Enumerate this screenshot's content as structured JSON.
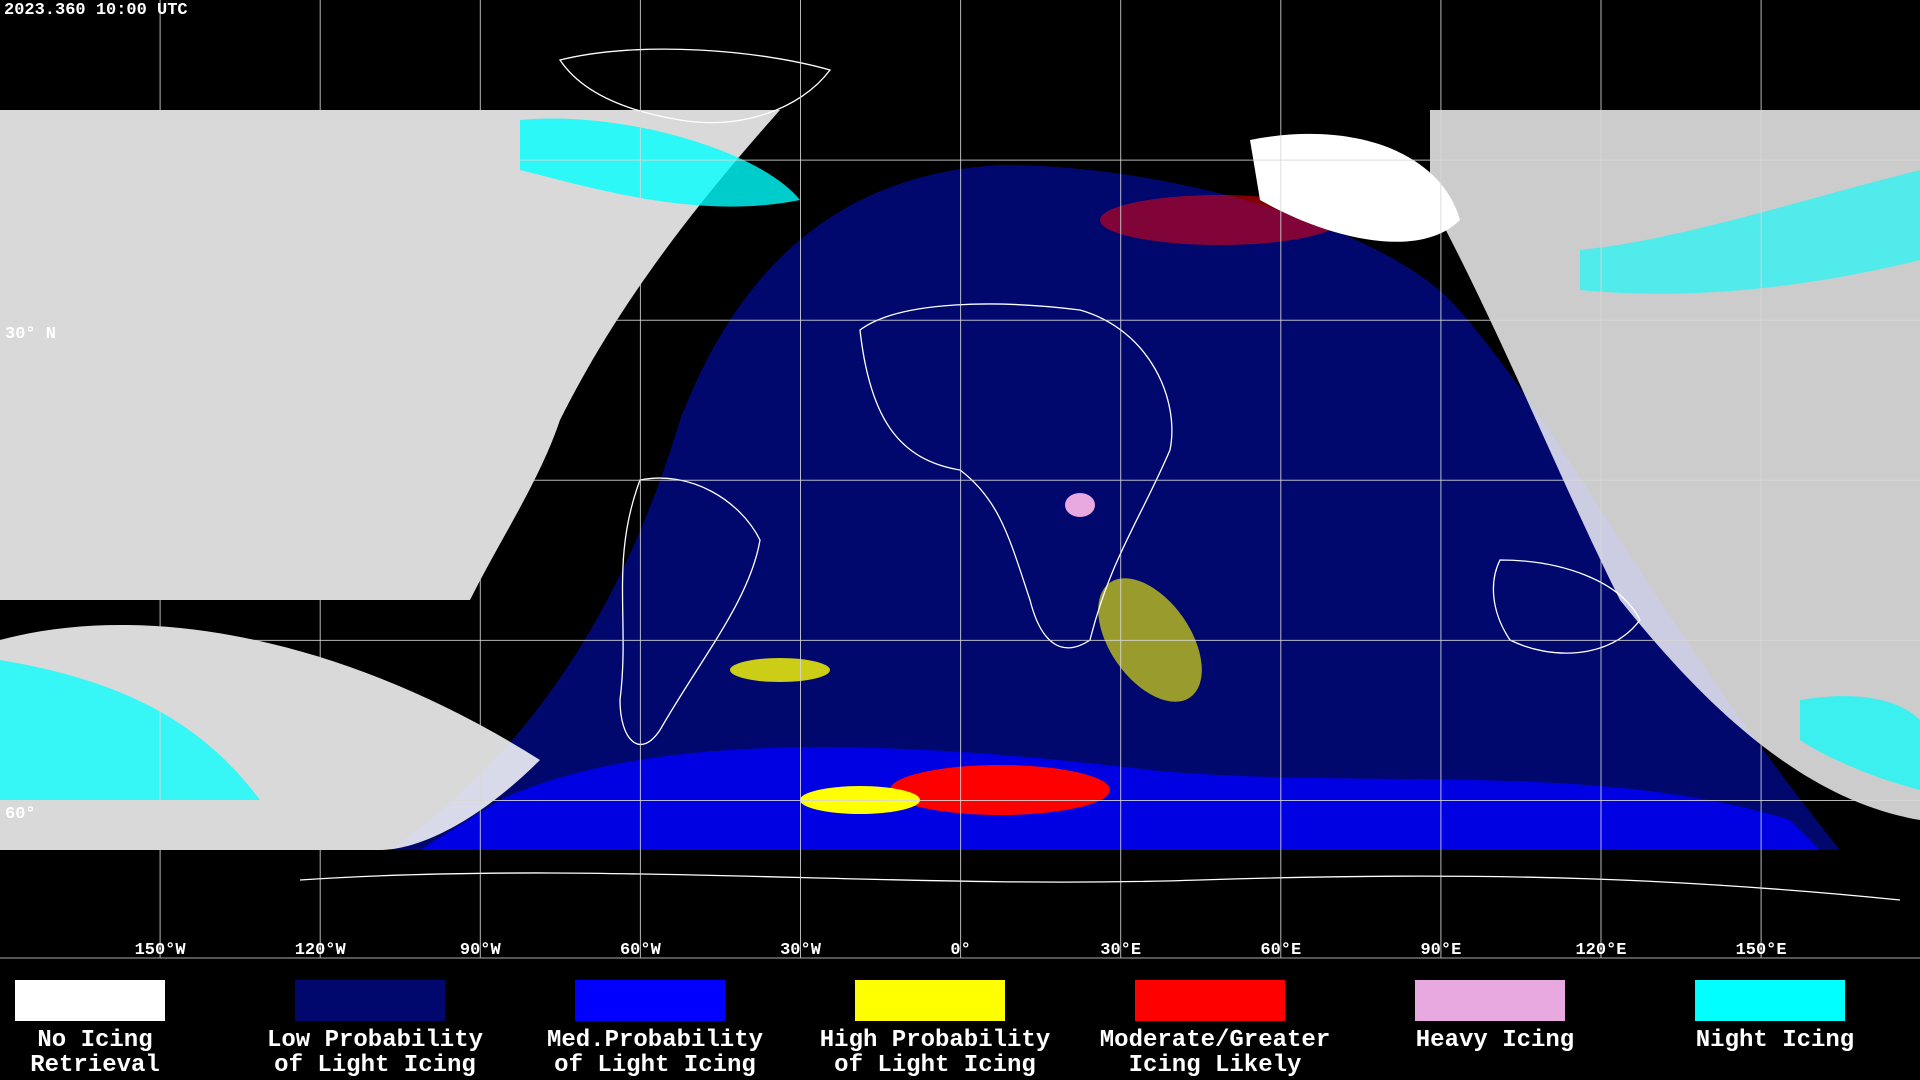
{
  "header": {
    "timestamp": "2023.360 10:00 UTC"
  },
  "map": {
    "lat_labels": [
      "30° N",
      "60°"
    ],
    "lon_labels": [
      "150°W",
      "120°W",
      "90°W",
      "60°W",
      "30°W",
      "0°",
      "30°E",
      "60°E",
      "90°E",
      "120°E",
      "150°E"
    ]
  },
  "legend": [
    {
      "color": "#ffffff",
      "lines": [
        "No Icing",
        "Retrieval"
      ]
    },
    {
      "color": "#00086e",
      "lines": [
        "Low Probability",
        "of Light Icing"
      ]
    },
    {
      "color": "#0000ff",
      "lines": [
        "Med.Probability",
        "of Light Icing"
      ]
    },
    {
      "color": "#ffff00",
      "lines": [
        "High Probability",
        "of Light Icing"
      ]
    },
    {
      "color": "#ff0000",
      "lines": [
        "Moderate/Greater",
        "Icing Likely"
      ]
    },
    {
      "color": "#e8a8e0",
      "lines": [
        "Heavy Icing"
      ]
    },
    {
      "color": "#00ffff",
      "lines": [
        "Night Icing"
      ]
    }
  ]
}
